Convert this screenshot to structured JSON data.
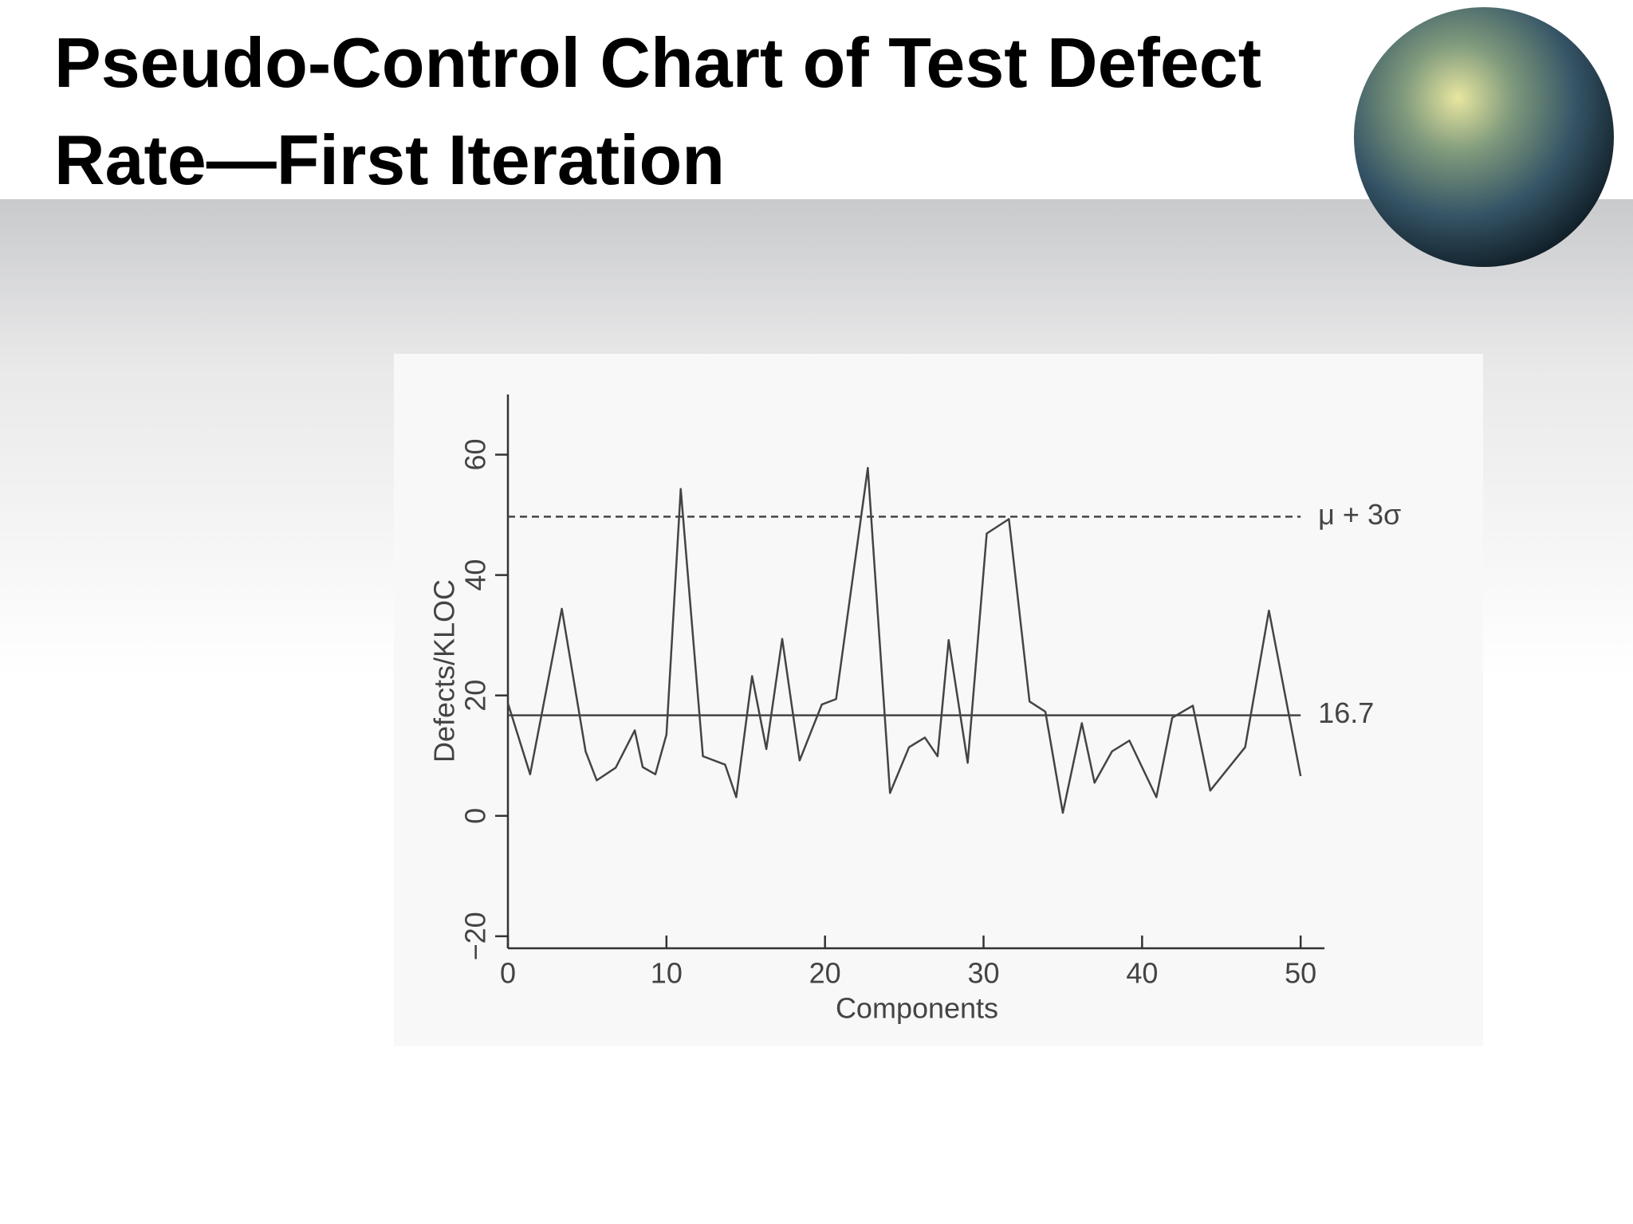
{
  "chart_data": {
    "type": "line",
    "title": "Pseudo-Control Chart of Test Defect Rate—First Iteration",
    "xlabel": "Components",
    "ylabel": "Defects/KLOC",
    "x": [
      0,
      1.4,
      2.4,
      3.4,
      4.9,
      5.6,
      6.8,
      8.0,
      8.5,
      9.3,
      10.0,
      10.9,
      12.3,
      13.7,
      14.4,
      15.4,
      16.3,
      17.3,
      18.4,
      19.8,
      20.7,
      22.7,
      24.1,
      25.3,
      26.3,
      27.1,
      27.8,
      29.0,
      30.2,
      31.6,
      32.9,
      33.9,
      35.0,
      36.2,
      37.0,
      38.1,
      39.2,
      40.9,
      41.9,
      43.2,
      44.3,
      46.5,
      48.0,
      50.0
    ],
    "series": [
      {
        "color": "#444444",
        "values": [
          18.7,
          6.9,
          20.6,
          34.4,
          10.7,
          5.9,
          8.0,
          14.2,
          8.1,
          6.9,
          13.5,
          54.3,
          9.9,
          8.5,
          3.1,
          23.2,
          11.1,
          29.4,
          9.2,
          18.5,
          19.4,
          57.8,
          3.8,
          11.4,
          13.0,
          9.9,
          29.2,
          8.8,
          46.9,
          49.3,
          19.0,
          17.3,
          0.5,
          15.4,
          5.5,
          10.7,
          12.5,
          3.1,
          16.3,
          18.3,
          4.2,
          11.4,
          34.1,
          6.6
        ]
      }
    ],
    "reference_lines": [
      {
        "value": 16.7,
        "style": "solid"
      },
      {
        "value": 49.7,
        "label": "μ + 3σ",
        "style": "dashed"
      }
    ],
    "xlim": [
      0,
      51.5
    ],
    "xticks": [
      0,
      10,
      20,
      30,
      40,
      50
    ],
    "ylim": [
      -22,
      70
    ],
    "yticks": [
      {
        "value": -20,
        "label": "−20"
      },
      0,
      20,
      40,
      60
    ],
    "grid": false
  }
}
